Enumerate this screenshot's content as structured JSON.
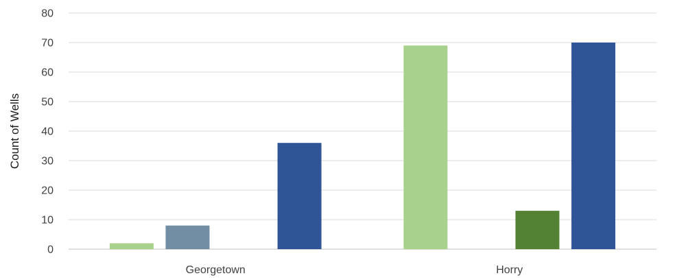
{
  "chart_data": {
    "type": "bar",
    "title": "",
    "xlabel": "",
    "ylabel": "Count of Wells",
    "ylim": [
      0,
      80
    ],
    "yticks": [
      0,
      10,
      20,
      30,
      40,
      50,
      60,
      70,
      80
    ],
    "grid": true,
    "categories": [
      "Georgetown",
      "Horry"
    ],
    "series": [
      {
        "color": "#a9d18e",
        "values": [
          2,
          69
        ]
      },
      {
        "color": "#728ea4",
        "values": [
          8,
          0
        ]
      },
      {
        "color": "#548235",
        "values": [
          0,
          13
        ]
      },
      {
        "color": "#2f5597",
        "values": [
          36,
          70
        ]
      }
    ]
  }
}
